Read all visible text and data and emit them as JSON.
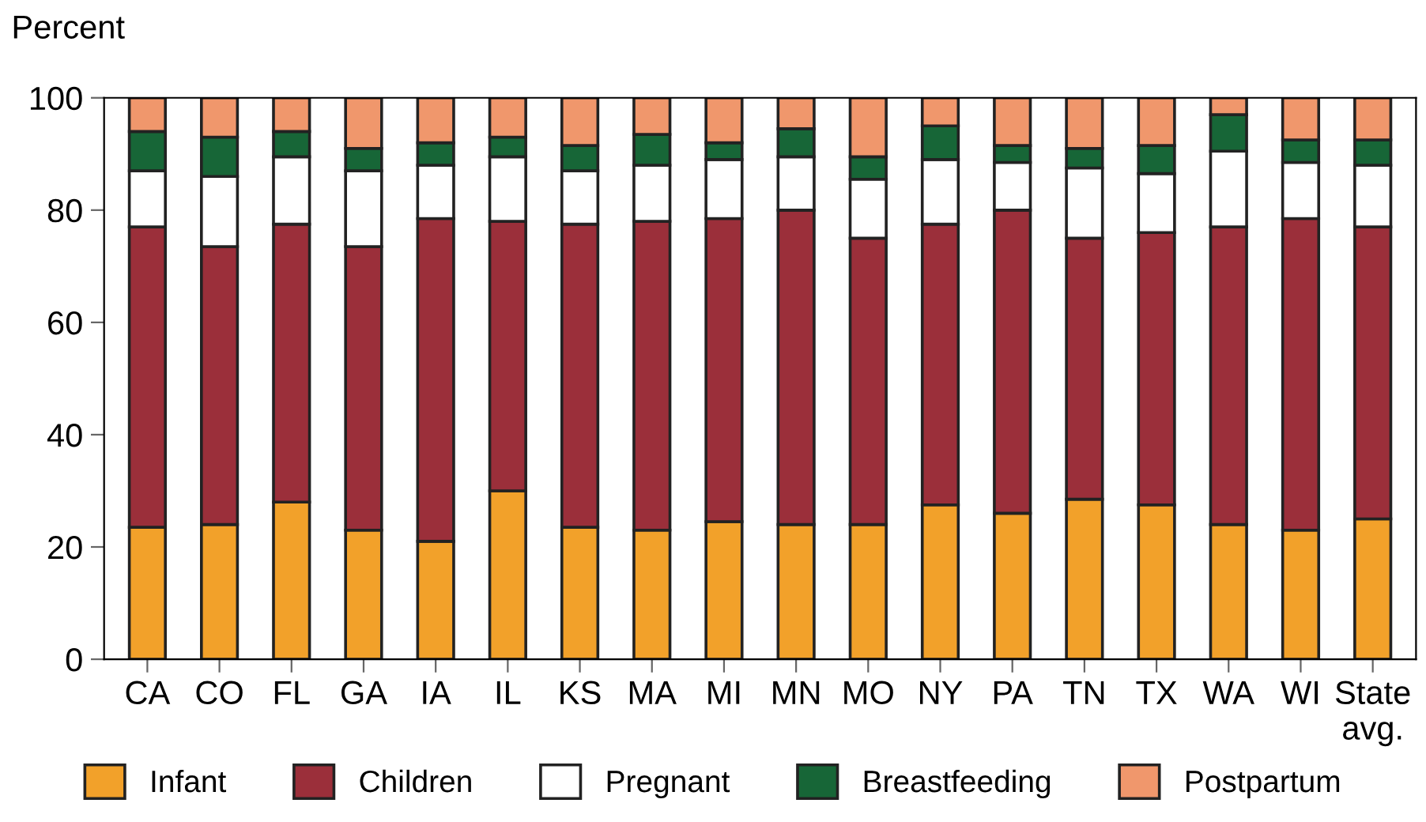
{
  "chart_data": {
    "type": "bar",
    "stacked": true,
    "ylabel": "Percent",
    "categories": [
      "CA",
      "CO",
      "FL",
      "GA",
      "IA",
      "IL",
      "KS",
      "MA",
      "MI",
      "MN",
      "MO",
      "NY",
      "PA",
      "TN",
      "TX",
      "WA",
      "WI",
      "State\navg."
    ],
    "series": [
      {
        "name": "Infant",
        "color": "#f2a12a",
        "values": [
          23.5,
          24,
          28,
          23,
          21,
          30,
          23.5,
          23,
          24.5,
          24,
          24,
          27.5,
          26,
          28.5,
          27.5,
          24,
          23,
          25
        ]
      },
      {
        "name": "Children",
        "color": "#9b2f3a",
        "values": [
          53.5,
          49.5,
          49.5,
          50.5,
          57.5,
          48,
          54,
          55,
          54,
          56,
          51,
          50,
          54,
          46.5,
          48.5,
          53,
          55.5,
          52
        ]
      },
      {
        "name": "Pregnant",
        "color": "#ffffff",
        "values": [
          10,
          12.5,
          12,
          13.5,
          9.5,
          11.5,
          9.5,
          10,
          10.5,
          9.5,
          10.5,
          11.5,
          8.5,
          12.5,
          10.5,
          13.5,
          10,
          11
        ]
      },
      {
        "name": "Breastfeeding",
        "color": "#176637",
        "values": [
          7,
          7,
          4.5,
          4,
          4,
          3.5,
          4.5,
          5.5,
          3,
          5,
          4,
          6,
          3,
          3.5,
          5,
          6.5,
          4,
          4.5
        ]
      },
      {
        "name": "Postpartum",
        "color": "#f0976c",
        "values": [
          6,
          7,
          6,
          9,
          8,
          7,
          8.5,
          6.5,
          8,
          5.5,
          10.5,
          5,
          8.5,
          9,
          8.5,
          3,
          7.5,
          7.5
        ]
      }
    ],
    "ylim": [
      0,
      100
    ],
    "yticks": [
      0,
      20,
      40,
      60,
      80,
      100
    ],
    "grid": false,
    "legend": "bottom"
  }
}
